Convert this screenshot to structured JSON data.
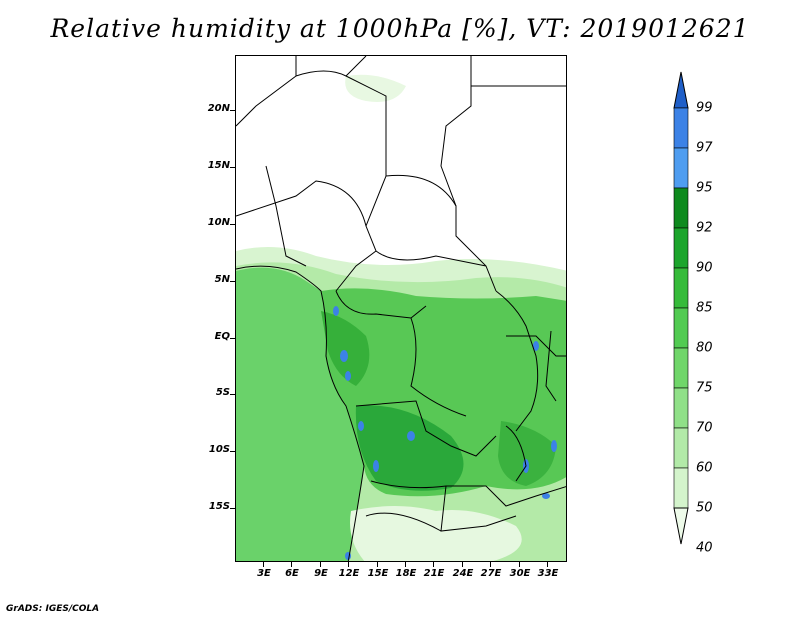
{
  "title": "Relative humidity at 1000hPa [%], VT: 2019012621",
  "footer": "GrADS: IGES/COLA",
  "map": {
    "lat_labels": [
      "20N",
      "15N",
      "10N",
      "5N",
      "EQ",
      "5S",
      "10S",
      "15S"
    ],
    "lon_labels": [
      "3E",
      "6E",
      "9E",
      "12E",
      "15E",
      "18E",
      "21E",
      "24E",
      "27E",
      "30E",
      "33E"
    ]
  },
  "colorbar": {
    "labels": [
      "99",
      "97",
      "95",
      "92",
      "90",
      "85",
      "80",
      "75",
      "70",
      "60",
      "50",
      "40"
    ],
    "colors": [
      "#1f5fc8",
      "#3c82e6",
      "#4f9df0",
      "#0e8a1e",
      "#1ca52c",
      "#36bb3a",
      "#52cb52",
      "#70d66a",
      "#90e088",
      "#b2eaa8",
      "#d4f4cc",
      "#eefbea"
    ]
  },
  "colors": {
    "land_dry": "#ffffff",
    "border": "#000000",
    "ocean": "#66cf66",
    "humid_core": "#2aa83a",
    "saturated": "#3c82e6"
  }
}
